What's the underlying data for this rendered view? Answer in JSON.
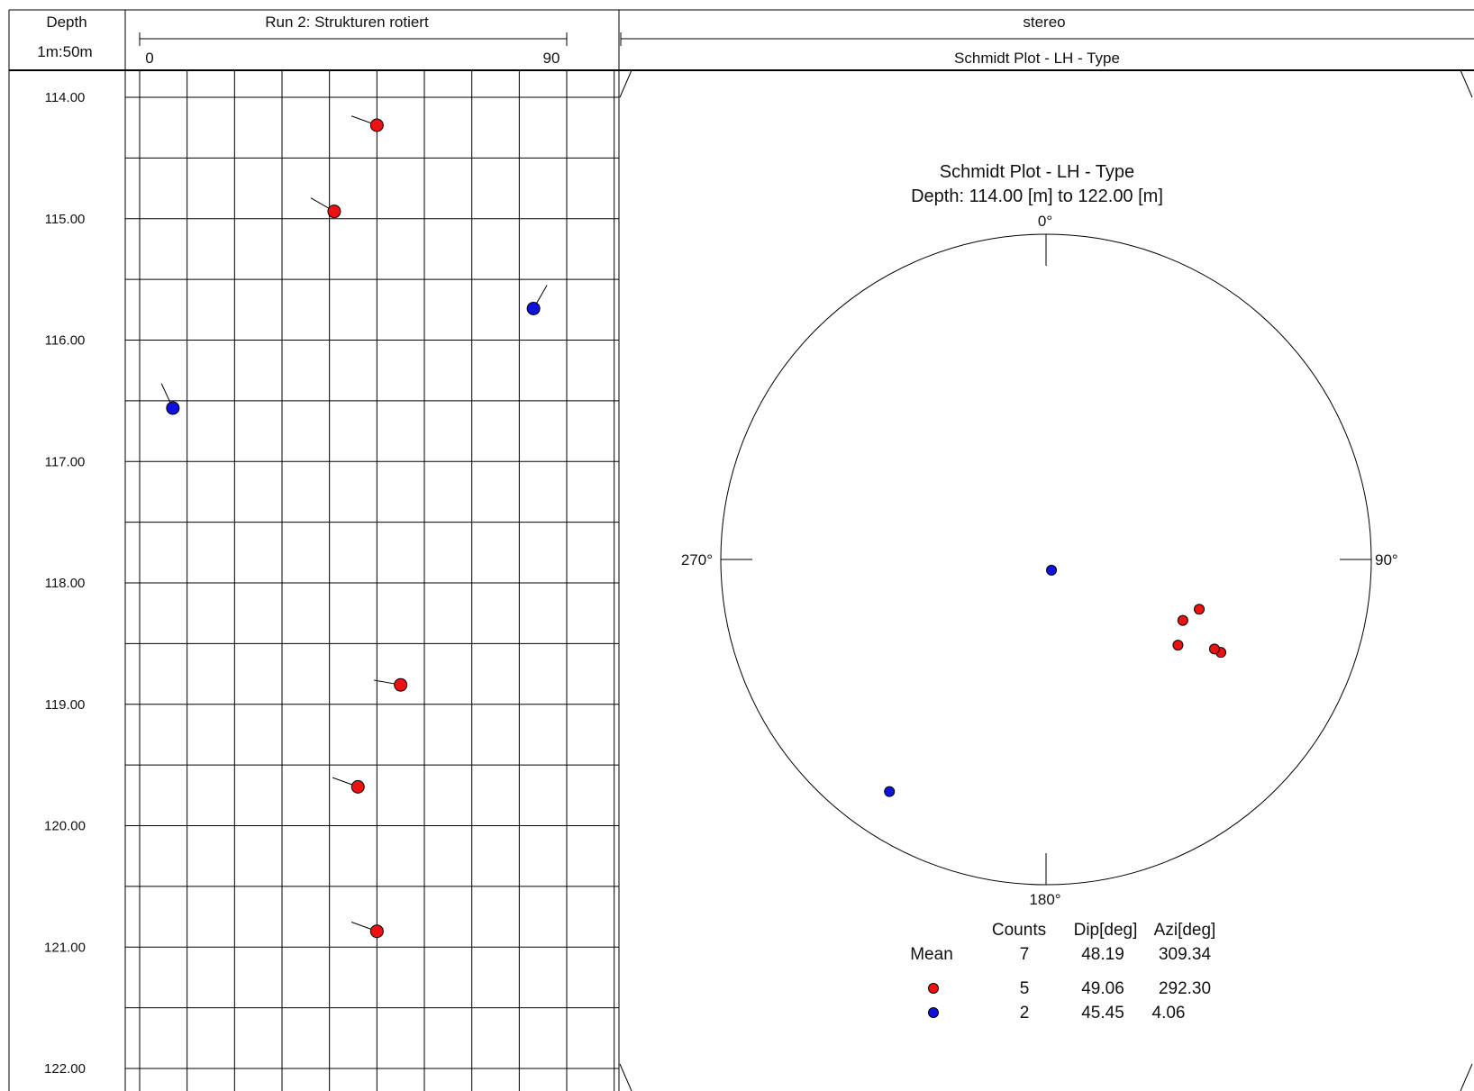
{
  "header": {
    "depth_label": "Depth",
    "scale_label": "1m:50m",
    "track_title": "Run 2: Strukturen rotiert",
    "track_min_label": "0",
    "track_max_label": "90",
    "stereo_title": "stereo",
    "stereo_subtitle": "Schmidt Plot - LH - Type"
  },
  "depth_ticks": [
    "114.00",
    "115.00",
    "116.00",
    "117.00",
    "118.00",
    "119.00",
    "120.00",
    "121.00",
    "122.00"
  ],
  "colors": {
    "type_red": "#ee1111",
    "type_blue": "#1111dd",
    "line": "#000000"
  },
  "chart_data": [
    {
      "type": "scatter",
      "name": "Run 2: Strukturen rotiert",
      "xlim": [
        0,
        90
      ],
      "ylim": [
        114.0,
        122.0
      ],
      "y_inverted": true,
      "grid": true,
      "xlabel": "",
      "ylabel": "Depth",
      "points": [
        {
          "depth": 114.23,
          "dip": 50,
          "azimuth": 290,
          "type": "red"
        },
        {
          "depth": 114.94,
          "dip": 41,
          "azimuth": 300,
          "type": "red"
        },
        {
          "depth": 115.74,
          "dip": 83,
          "azimuth": 30,
          "type": "blue"
        },
        {
          "depth": 116.56,
          "dip": 7,
          "azimuth": 335,
          "type": "blue"
        },
        {
          "depth": 118.84,
          "dip": 55,
          "azimuth": 280,
          "type": "red"
        },
        {
          "depth": 119.68,
          "dip": 46,
          "azimuth": 290,
          "type": "red"
        },
        {
          "depth": 120.87,
          "dip": 50,
          "azimuth": 290,
          "type": "red"
        }
      ]
    },
    {
      "type": "scatter",
      "name": "Schmidt Plot - LH - Type",
      "title": "Schmidt Plot - LH - Type",
      "subtitle": "Depth: 114.00 [m] to 122.00 [m]",
      "projection": "schmidt-lower-hemisphere",
      "direction_labels": [
        "0°",
        "90°",
        "180°",
        "270°"
      ],
      "points": [
        {
          "trend": 118,
          "plunge": 39,
          "type": "red"
        },
        {
          "trend": 118,
          "plunge": 41,
          "type": "red"
        },
        {
          "trend": 108,
          "plunge": 49,
          "type": "red"
        },
        {
          "trend": 114,
          "plunge": 52,
          "type": "red"
        },
        {
          "trend": 123,
          "plunge": 50,
          "type": "red"
        },
        {
          "trend": 153,
          "plunge": 87,
          "type": "blue"
        },
        {
          "trend": 214,
          "plunge": 15,
          "type": "blue"
        }
      ],
      "stats": {
        "headers": [
          "Counts",
          "Dip[deg]",
          "Azi[deg]"
        ],
        "mean_label": "Mean",
        "mean": {
          "counts": "7",
          "dip": "48.19",
          "azi": "309.34"
        },
        "rows": [
          {
            "type": "red",
            "counts": "5",
            "dip": "49.06",
            "azi": "292.30"
          },
          {
            "type": "blue",
            "counts": "2",
            "dip": "45.45",
            "azi": "4.06"
          }
        ]
      }
    }
  ]
}
